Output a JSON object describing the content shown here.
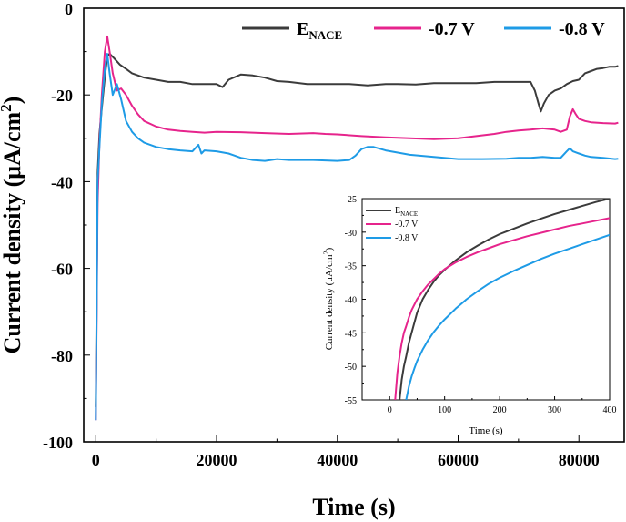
{
  "chart_data": [
    {
      "type": "line",
      "title": "",
      "xlabel": "Time (s)",
      "ylabel": "Current density (μA/cm²)",
      "ylabel_parts": {
        "main": "Current density (μA/cm",
        "sup": "2",
        "end": ")"
      },
      "xlim": [
        -2000,
        87500
      ],
      "ylim": [
        -100,
        0
      ],
      "xticks": [
        0,
        20000,
        40000,
        60000,
        80000
      ],
      "xtick_labels": [
        "0",
        "20000",
        "40000",
        "60000",
        "80000"
      ],
      "yticks": [
        0,
        -20,
        -40,
        -60,
        -80,
        -100
      ],
      "ytick_labels": [
        "0",
        "-20",
        "-40",
        "-60",
        "-80",
        "-100"
      ],
      "legend_position": "top-right",
      "grid": false,
      "series": [
        {
          "name": "E_NACE",
          "name_main": "E",
          "name_sub": "NACE",
          "color": "#3b3b3b",
          "x": [
            0,
            300,
            600,
            1000,
            1500,
            1900,
            2300,
            3000,
            4000,
            5000,
            6000,
            8000,
            10000,
            12000,
            14000,
            16000,
            18000,
            20000,
            21000,
            22000,
            24000,
            26000,
            28000,
            30000,
            32000,
            35000,
            38000,
            40000,
            42000,
            45000,
            48000,
            50000,
            53000,
            56000,
            60000,
            63000,
            66000,
            68000,
            70000,
            71000,
            72000,
            72700,
            73300,
            73700,
            74200,
            75000,
            76000,
            77000,
            78000,
            79000,
            80000,
            81000,
            82000,
            83000,
            84000,
            85000,
            86000,
            86500
          ],
          "y": [
            -92,
            -38,
            -29,
            -23,
            -16,
            -11,
            -10.5,
            -11.5,
            -13,
            -14,
            -15,
            -16,
            -16.5,
            -17,
            -17,
            -17.5,
            -17.5,
            -17.5,
            -18.2,
            -16.5,
            -15.3,
            -15.5,
            -16,
            -16.8,
            -17,
            -17.5,
            -17.5,
            -17.5,
            -17.5,
            -17.8,
            -17.5,
            -17.5,
            -17.6,
            -17.3,
            -17.3,
            -17.3,
            -17,
            -17,
            -17,
            -17,
            -17,
            -19,
            -22,
            -23.8,
            -22,
            -20,
            -19,
            -18.5,
            -17.5,
            -16.8,
            -16.5,
            -15,
            -14.5,
            -14,
            -13.8,
            -13.5,
            -13.5,
            -13.3
          ]
        },
        {
          "name": "-0.7 V",
          "color": "#e6248c",
          "x": [
            0,
            300,
            600,
            1000,
            1500,
            1900,
            2300,
            2800,
            3500,
            4200,
            5000,
            6000,
            7000,
            8000,
            10000,
            12000,
            14000,
            16000,
            18000,
            20000,
            24000,
            28000,
            32000,
            36000,
            38000,
            40000,
            44000,
            48000,
            52000,
            56000,
            60000,
            63000,
            66000,
            68000,
            70000,
            72000,
            74000,
            76000,
            77000,
            78000,
            78500,
            79000,
            79500,
            80000,
            81000,
            82000,
            84000,
            86000,
            86500
          ],
          "y": [
            -95,
            -45,
            -31,
            -20,
            -10,
            -6.5,
            -10,
            -15,
            -19,
            -18.5,
            -20,
            -22.5,
            -24.5,
            -26,
            -27.3,
            -28,
            -28.3,
            -28.5,
            -28.7,
            -28.5,
            -28.6,
            -28.8,
            -29,
            -28.8,
            -29,
            -29.1,
            -29.5,
            -29.8,
            -30,
            -30.2,
            -30,
            -29.5,
            -29,
            -28.5,
            -28.2,
            -28,
            -27.7,
            -28,
            -28.5,
            -28,
            -25,
            -23.3,
            -24.5,
            -25.5,
            -26,
            -26.3,
            -26.5,
            -26.6,
            -26.4
          ]
        },
        {
          "name": "-0.8 V",
          "color": "#1e9be6",
          "x": [
            0,
            300,
            600,
            1000,
            1500,
            1900,
            2300,
            2800,
            3500,
            4200,
            5000,
            6000,
            7000,
            8000,
            10000,
            12000,
            14000,
            16000,
            17000,
            17500,
            18000,
            20000,
            22000,
            24000,
            26000,
            28000,
            30000,
            32000,
            36000,
            40000,
            42000,
            43000,
            44000,
            45000,
            46000,
            48000,
            52000,
            56000,
            60000,
            64000,
            68000,
            70000,
            72000,
            74000,
            76000,
            77000,
            78000,
            78500,
            79000,
            80000,
            81000,
            82000,
            84000,
            86000,
            86500
          ],
          "y": [
            -95,
            -40,
            -32,
            -22,
            -14,
            -10.5,
            -15,
            -20,
            -17.5,
            -21,
            -26,
            -28.5,
            -30,
            -31,
            -32,
            -32.5,
            -32.8,
            -33,
            -31.5,
            -33.5,
            -32.8,
            -33,
            -33.5,
            -34.5,
            -35,
            -35.2,
            -34.8,
            -35,
            -35,
            -35.2,
            -35,
            -34,
            -32.5,
            -32,
            -32,
            -32.8,
            -33.8,
            -34.3,
            -34.8,
            -34.8,
            -34.7,
            -34.5,
            -34.5,
            -34.3,
            -34.5,
            -34.5,
            -33,
            -32.3,
            -33,
            -33.5,
            -34,
            -34.3,
            -34.5,
            -34.8,
            -34.7
          ]
        }
      ]
    },
    {
      "type": "line",
      "title": "",
      "xlabel": "Time (s)",
      "ylabel": "Current density (μA/cm²)",
      "ylabel_parts": {
        "main": "Current density (μA/cm",
        "sup": "2",
        "end": ")"
      },
      "xlim": [
        -50,
        400
      ],
      "ylim": [
        -55,
        -25
      ],
      "xticks": [
        0,
        100,
        200,
        300,
        400
      ],
      "xtick_labels": [
        "0",
        "100",
        "200",
        "300",
        "400"
      ],
      "yticks": [
        -25,
        -30,
        -35,
        -40,
        -45,
        -50,
        -55
      ],
      "ytick_labels": [
        "-25",
        "-30",
        "-35",
        "-40",
        "-45",
        "-50",
        "-55"
      ],
      "legend_position": "top-left",
      "grid": false,
      "series": [
        {
          "name": "E_NACE",
          "name_main": "E",
          "name_sub": "NACE",
          "color": "#3b3b3b",
          "x": [
            18,
            22,
            26,
            30,
            35,
            40,
            50,
            60,
            70,
            80,
            90,
            100,
            120,
            140,
            160,
            180,
            200,
            225,
            250,
            275,
            300,
            325,
            350,
            375,
            400
          ],
          "y": [
            -55,
            -52,
            -50,
            -48.5,
            -46.5,
            -45,
            -42,
            -40,
            -38.6,
            -37.4,
            -36.4,
            -35.6,
            -34.2,
            -33,
            -32,
            -31.1,
            -30.3,
            -29.5,
            -28.7,
            -28,
            -27.3,
            -26.7,
            -26.1,
            -25.5,
            -25
          ]
        },
        {
          "name": "-0.7 V",
          "color": "#e6248c",
          "x": [
            10,
            14,
            18,
            22,
            26,
            30,
            35,
            40,
            50,
            60,
            70,
            80,
            90,
            100,
            120,
            140,
            160,
            180,
            200,
            225,
            250,
            275,
            300,
            325,
            350,
            375,
            400
          ],
          "y": [
            -55,
            -51,
            -48.5,
            -46.5,
            -45,
            -44,
            -42.7,
            -41.6,
            -40,
            -38.8,
            -37.8,
            -37,
            -36.2,
            -35.5,
            -34.5,
            -33.7,
            -33,
            -32.4,
            -31.8,
            -31.2,
            -30.6,
            -30.1,
            -29.6,
            -29.1,
            -28.7,
            -28.3,
            -27.9
          ]
        },
        {
          "name": "-0.8 V",
          "color": "#1e9be6",
          "x": [
            30,
            35,
            40,
            45,
            50,
            60,
            70,
            80,
            90,
            100,
            120,
            140,
            160,
            180,
            200,
            225,
            250,
            275,
            300,
            325,
            350,
            375,
            400
          ],
          "y": [
            -55,
            -53,
            -51.5,
            -50.3,
            -49.2,
            -47.5,
            -46.1,
            -44.9,
            -43.9,
            -43,
            -41.4,
            -40,
            -38.8,
            -37.7,
            -36.8,
            -35.8,
            -34.9,
            -34,
            -33.2,
            -32.5,
            -31.8,
            -31.1,
            -30.4
          ]
        }
      ]
    }
  ]
}
